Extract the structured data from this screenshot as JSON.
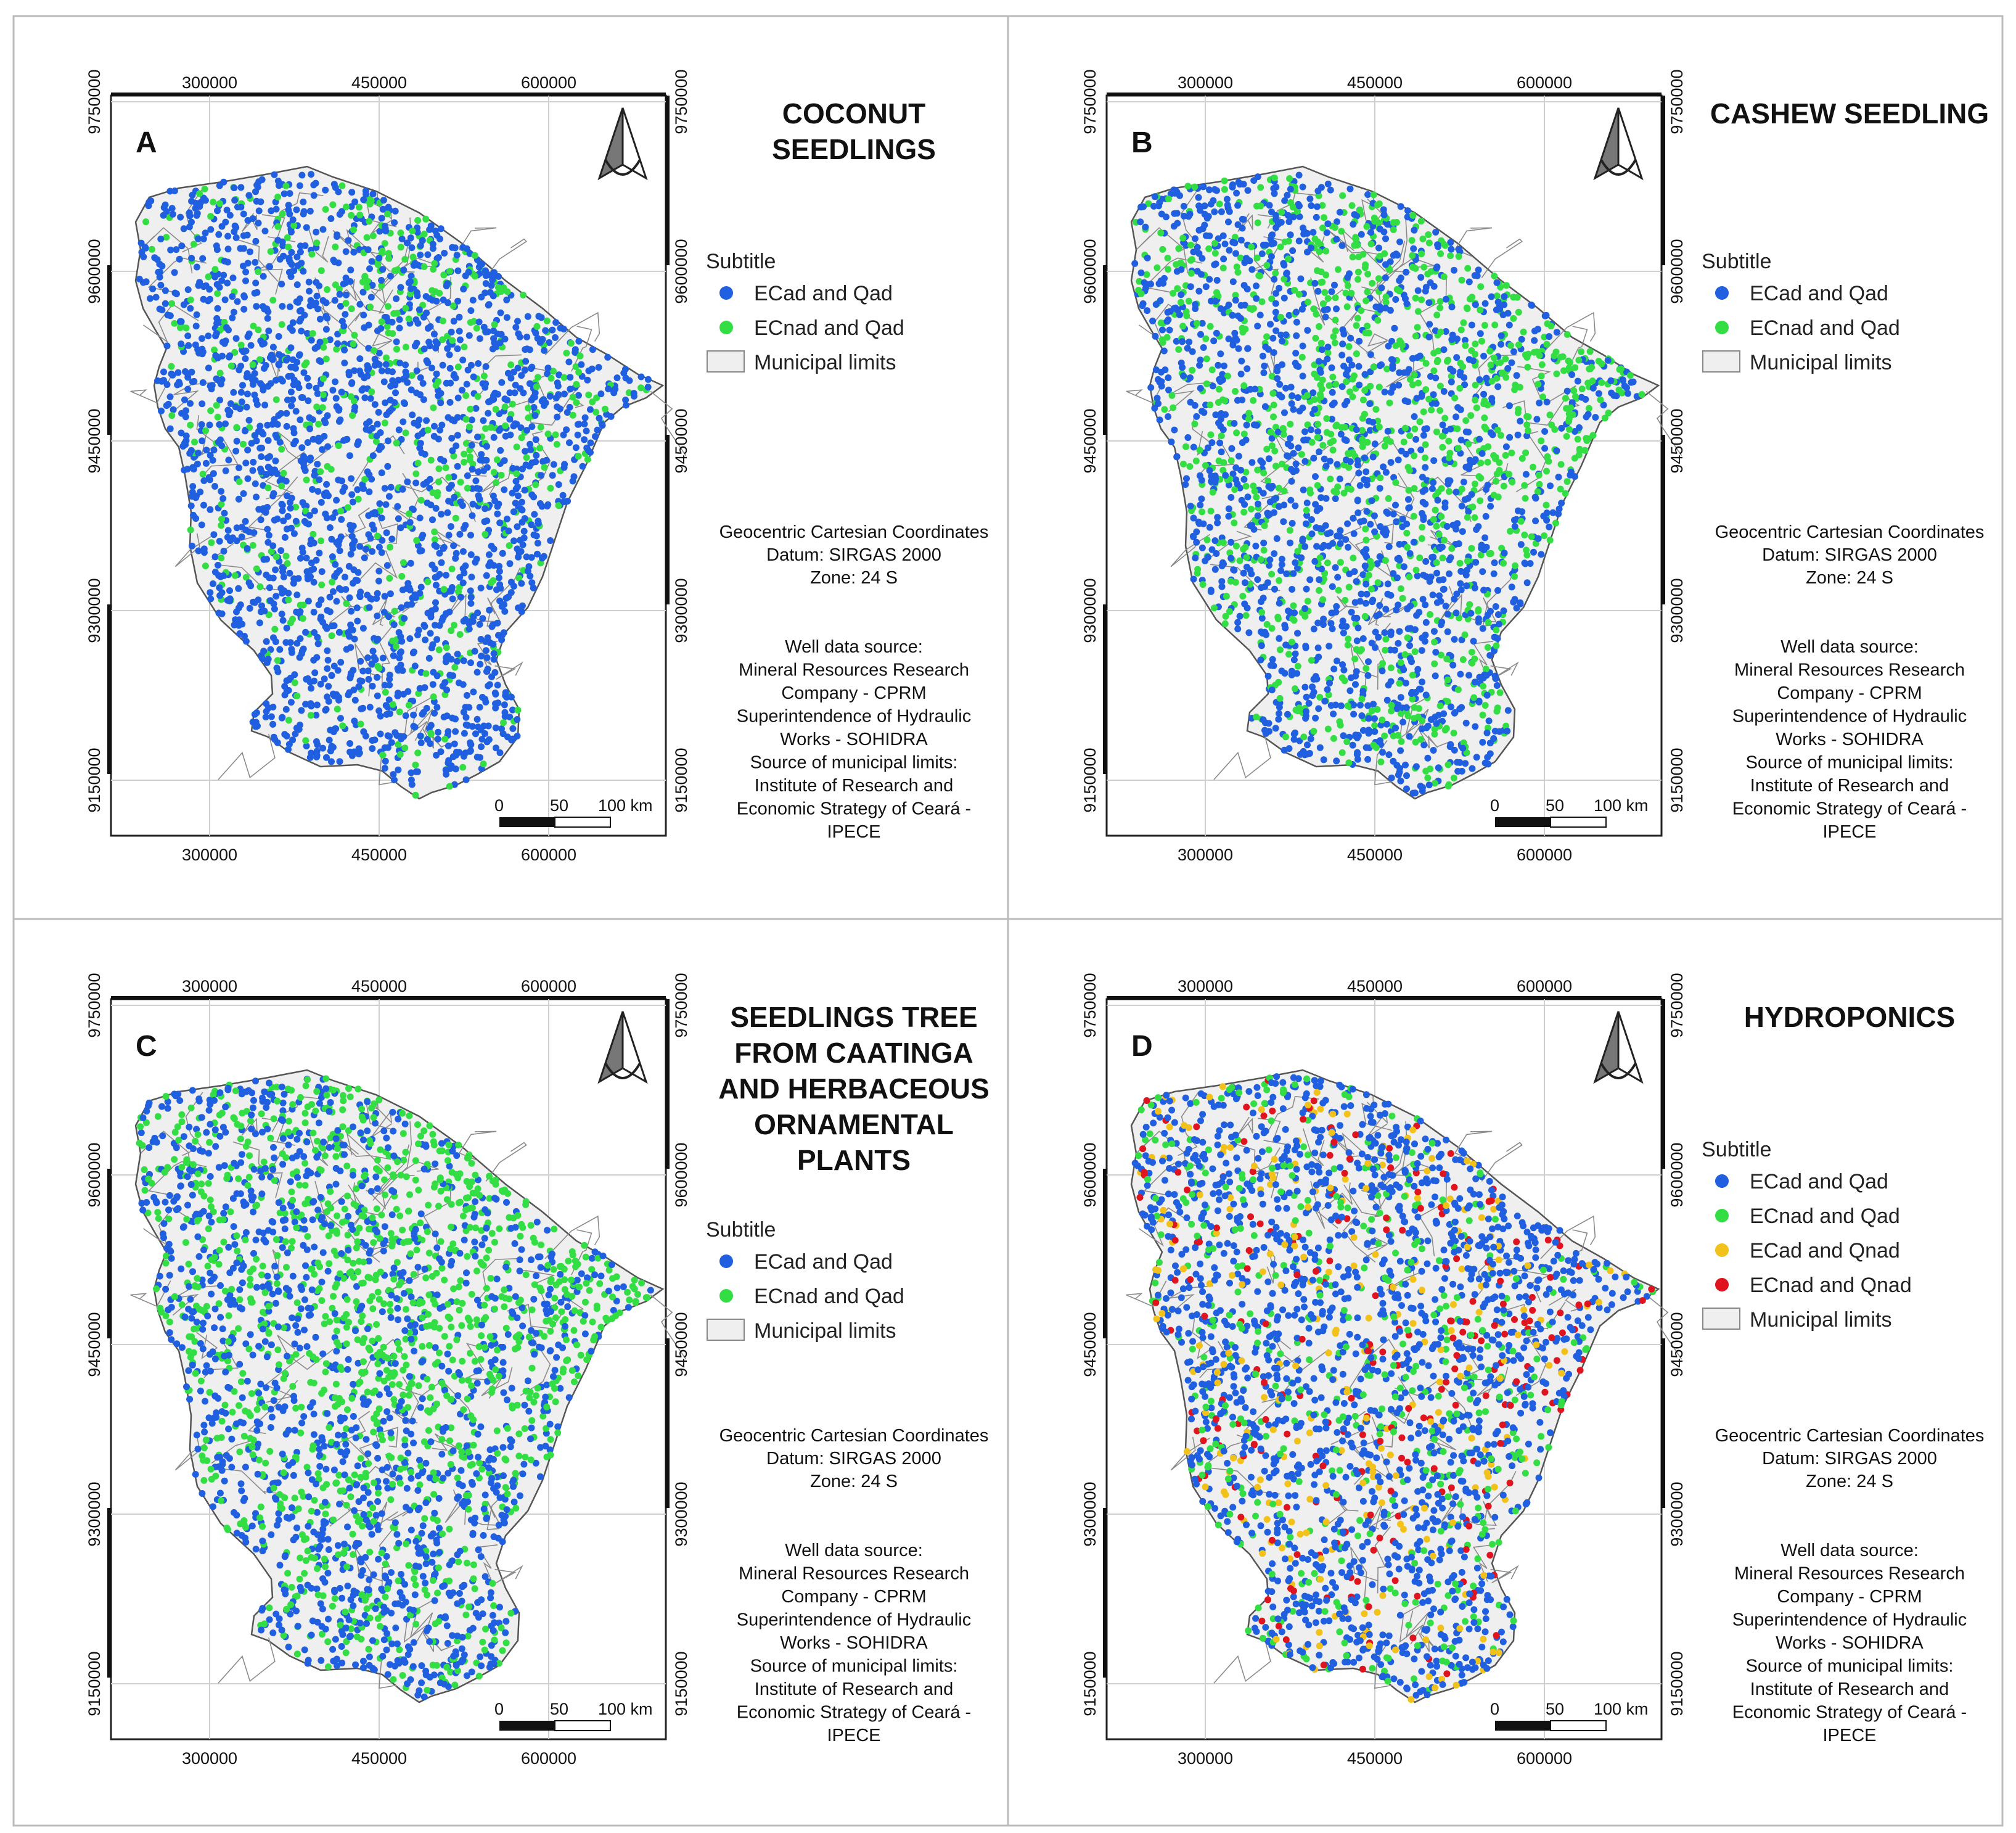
{
  "colors": {
    "ECad_Qad": "#1f5fe0",
    "ECnad_Qad": "#33dd44",
    "ECad_Qnad": "#f2c21a",
    "ECnad_Qnad": "#e0141e",
    "municipal_fill": "#efefef",
    "municipal_line": "#555555"
  },
  "axes": {
    "x_ticks": [
      "300000",
      "450000",
      "600000"
    ],
    "y_ticks": [
      "9750000",
      "9600000",
      "9450000",
      "9300000",
      "9150000"
    ]
  },
  "scale_bar": {
    "labels": [
      "0",
      "50",
      "100 km"
    ]
  },
  "north_arrow_icon": "north-arrow-icon",
  "coordinate_info": [
    "Geocentric Cartesian Coordinates",
    "Datum: SIRGAS 2000",
    "Zone: 24 S"
  ],
  "source_info": [
    "Well data source:",
    "Mineral Resources Research",
    "Company - CPRM",
    "Superintendence of Hydraulic",
    "Works - SOHIDRA",
    "Source of municipal limits:",
    "Institute of Research and",
    "Economic Strategy of Ceará -",
    "IPECE"
  ],
  "panels": [
    {
      "letter": "A",
      "title_lines": [
        "COCONUT",
        "SEEDLINGS"
      ],
      "legend_title": "Subtitle",
      "legend": [
        {
          "label": "ECad and Qad",
          "type": "dot",
          "color_key": "ECad_Qad"
        },
        {
          "label": "ECnad and Qad",
          "type": "dot",
          "color_key": "ECnad_Qad"
        },
        {
          "label": "Municipal limits",
          "type": "box"
        }
      ],
      "point_mix": {
        "ECad_Qad": 0.84,
        "ECnad_Qad": 0.16
      }
    },
    {
      "letter": "B",
      "title_lines": [
        "CASHEW SEEDLING"
      ],
      "legend_title": "Subtitle",
      "legend": [
        {
          "label": "ECad and Qad",
          "type": "dot",
          "color_key": "ECad_Qad"
        },
        {
          "label": "ECnad and Qad",
          "type": "dot",
          "color_key": "ECnad_Qad"
        },
        {
          "label": "Municipal limits",
          "type": "box"
        }
      ],
      "point_mix": {
        "ECad_Qad": 0.68,
        "ECnad_Qad": 0.32
      }
    },
    {
      "letter": "C",
      "title_lines": [
        "SEEDLINGS TREE",
        "FROM CAATINGA",
        "AND  HERBACEOUS",
        "ORNAMENTAL",
        "PLANTS"
      ],
      "legend_title": "Subtitle",
      "legend": [
        {
          "label": "ECad and Qad",
          "type": "dot",
          "color_key": "ECad_Qad"
        },
        {
          "label": "ECnad and Qad",
          "type": "dot",
          "color_key": "ECnad_Qad"
        },
        {
          "label": "Municipal limits",
          "type": "box"
        }
      ],
      "point_mix": {
        "ECad_Qad": 0.62,
        "ECnad_Qad": 0.38
      }
    },
    {
      "letter": "D",
      "title_lines": [
        "HYDROPONICS"
      ],
      "legend_title": "Subtitle",
      "legend": [
        {
          "label": "ECad and Qad",
          "type": "dot",
          "color_key": "ECad_Qad"
        },
        {
          "label": "ECnad and Qad",
          "type": "dot",
          "color_key": "ECnad_Qad"
        },
        {
          "label": "ECad and Qnad",
          "type": "dot",
          "color_key": "ECad_Qnad"
        },
        {
          "label": "ECnad and Qnad",
          "type": "dot",
          "color_key": "ECnad_Qnad"
        },
        {
          "label": "Municipal limits",
          "type": "box"
        }
      ],
      "point_mix": {
        "ECad_Qad": 0.64,
        "ECnad_Qad": 0.18,
        "ECad_Qnad": 0.1,
        "ECnad_Qnad": 0.08
      }
    }
  ]
}
